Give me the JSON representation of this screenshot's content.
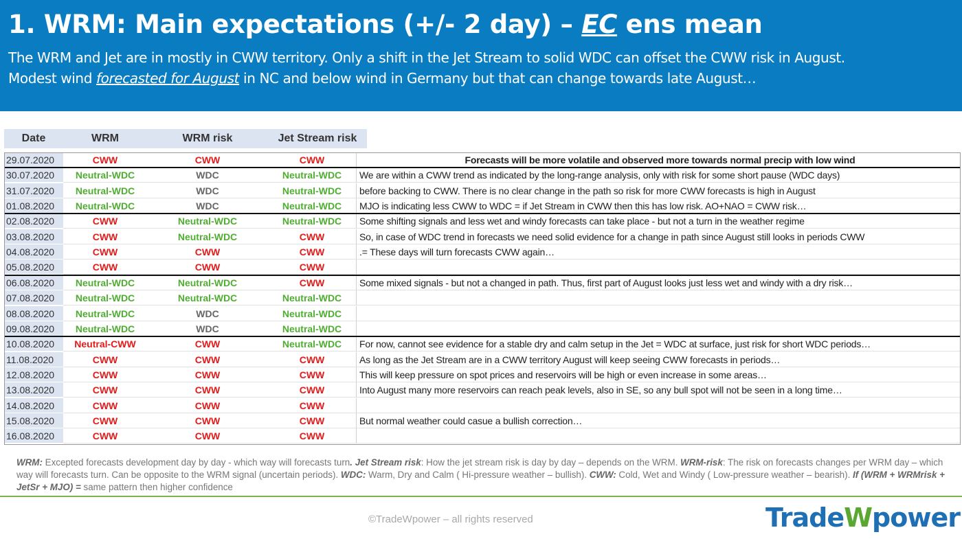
{
  "header": {
    "title_prefix": "1. WRM: Main expectations (+/- 2 day) – ",
    "title_ec": "EC",
    "title_suffix": " ens mean",
    "line1": "The WRM and Jet are in mostly in CWW territory. Only a shift in the Jet Stream to solid WDC can offset the CWW risk in August.",
    "line2_a": "Modest wind ",
    "line2_u": "forecasted for August",
    "line2_b": " in NC and below wind in Germany but that can change towards late August…"
  },
  "table": {
    "columns": [
      "Date",
      "WRM",
      "WRM risk",
      "Jet Stream risk"
    ],
    "rows": [
      {
        "date": "29.07.2020",
        "wrm": "CWW",
        "risk": "CWW",
        "jet": "CWW",
        "comment": "Forecasts will be more volatile and observed more towards  normal precip with low wind"
      },
      {
        "date": "30.07.2020",
        "wrm": "Neutral-WDC",
        "risk": "WDC",
        "jet": "Neutral-WDC",
        "comment": "We are within a CWW trend as indicated by the long-range analysis, only with risk for some short pause (WDC days)"
      },
      {
        "date": "31.07.2020",
        "wrm": "Neutral-WDC",
        "risk": "WDC",
        "jet": "Neutral-WDC",
        "comment": "before backing to CWW. There is no clear change in the path so risk for more CWW forecasts is high in August"
      },
      {
        "date": "01.08.2020",
        "wrm": "Neutral-WDC",
        "risk": "WDC",
        "jet": "Neutral-WDC",
        "comment": "MJO is indicating less CWW to WDC = if Jet Stream in CWW then this has low risk. AO+NAO = CWW risk…"
      },
      {
        "date": "02.08.2020",
        "wrm": "CWW",
        "risk": "Neutral-WDC",
        "jet": "Neutral-WDC",
        "comment": "Some shifting signals and less wet and windy forecasts can take place - but not a turn in the weather regime"
      },
      {
        "date": "03.08.2020",
        "wrm": "CWW",
        "risk": "Neutral-WDC",
        "jet": "CWW",
        "comment": "So, in case of WDC trend in forecasts we need solid evidence for a change in path since August still looks in periods CWW"
      },
      {
        "date": "04.08.2020",
        "wrm": "CWW",
        "risk": "CWW",
        "jet": "CWW",
        "comment": ".= These days will turn forecasts CWW again…"
      },
      {
        "date": "05.08.2020",
        "wrm": "CWW",
        "risk": "CWW",
        "jet": "CWW",
        "comment": ""
      },
      {
        "date": "06.08.2020",
        "wrm": "Neutral-WDC",
        "risk": "Neutral-WDC",
        "jet": "CWW",
        "comment": "Some mixed signals - but not a changed in path. Thus, first part of August looks just less wet and windy with a dry risk…"
      },
      {
        "date": "07.08.2020",
        "wrm": "Neutral-WDC",
        "risk": "Neutral-WDC",
        "jet": "Neutral-WDC",
        "comment": ""
      },
      {
        "date": "08.08.2020",
        "wrm": "Neutral-WDC",
        "risk": "WDC",
        "jet": "Neutral-WDC",
        "comment": ""
      },
      {
        "date": "09.08.2020",
        "wrm": "Neutral-WDC",
        "risk": "WDC",
        "jet": "Neutral-WDC",
        "comment": ""
      },
      {
        "date": "10.08.2020",
        "wrm": "Neutral-CWW",
        "risk": "CWW",
        "jet": "Neutral-WDC",
        "comment": "For now, cannot see evidence for a stable dry and calm setup in the Jet = WDC at surface, just risk for short WDC periods…"
      },
      {
        "date": "11.08.2020",
        "wrm": "CWW",
        "risk": "CWW",
        "jet": "CWW",
        "comment": "As long as the Jet Stream are in a CWW territory August will keep seeing CWW forecasts in periods…"
      },
      {
        "date": "12.08.2020",
        "wrm": "CWW",
        "risk": "CWW",
        "jet": "CWW",
        "comment": "This will keep pressure on spot prices and reservoirs will be high or even increase in some areas…"
      },
      {
        "date": "13.08.2020",
        "wrm": "CWW",
        "risk": "CWW",
        "jet": "CWW",
        "comment": "Into August many more reservoirs can reach peak levels, also in SE, so any bull spot will not be seen in a long time…"
      },
      {
        "date": "14.08.2020",
        "wrm": "CWW",
        "risk": "CWW",
        "jet": "CWW",
        "comment": ""
      },
      {
        "date": "15.08.2020",
        "wrm": "CWW",
        "risk": "CWW",
        "jet": "CWW",
        "comment": "But normal weather could casue a bullish correction…"
      },
      {
        "date": "16.08.2020",
        "wrm": "CWW",
        "risk": "CWW",
        "jet": "CWW",
        "comment": ""
      }
    ]
  },
  "notes": {
    "t1": "WRM:",
    "t2": " Excepted forecasts development day by day - which way will forecasts turn",
    "t3": ".  Jet Stream risk",
    "t4": ": How the jet stream risk is day by day – depends on the WRM. ",
    "t5": "WRM-risk",
    "t6": ": The risk on forecasts changes per WRM day – which way will forecasts turn. Can be opposite to the WRM signal (uncertain periods). ",
    "t7": "WDC:",
    "t8": " Warm, Dry and Calm ( Hi-pressure weather – bullish). ",
    "t9": "CWW:",
    "t10": " Cold, Wet and Windy ( Low-pressure weather – bearish). ",
    "t11": "If (WRM + WRMrisk + JetSr + MJO) =",
    "t12": " same pattern then higher confidence"
  },
  "footer": {
    "copyright": "©TradeWpower – all rights reserved",
    "logo_a": "Trade",
    "logo_w": "W",
    "logo_b": "power"
  },
  "colors": {
    "banner": "#0a7cc1",
    "cww": "#e31b1b",
    "neutral_wdc": "#4fae32",
    "wdc": "#666666",
    "header_fill": "#dce3f1"
  }
}
